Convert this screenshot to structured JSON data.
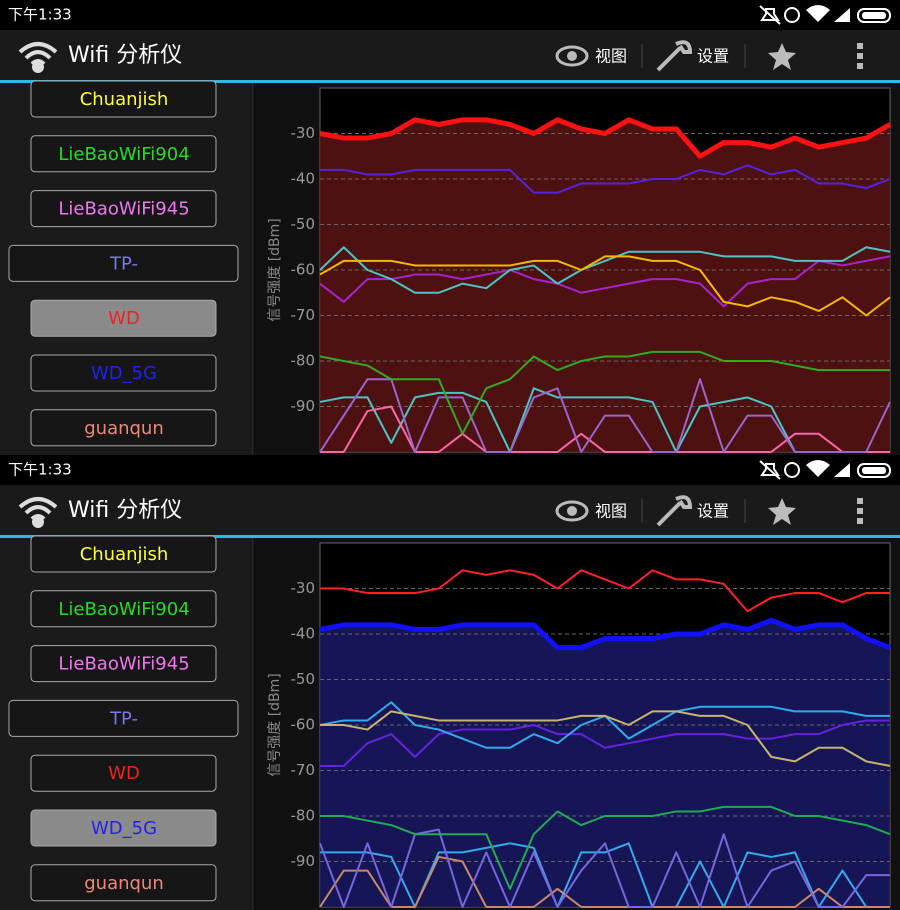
{
  "screens": [
    {
      "status_bar": {
        "time": "下午1:33"
      },
      "app_bar": {
        "title": "Wifi 分析仪",
        "view": "视图",
        "settings": "设置"
      },
      "selected": 4,
      "networks": [
        {
          "name": "Chuanjish",
          "color": "#ffff33"
        },
        {
          "name": "LieBaoWiFi904",
          "color": "#22dd22"
        },
        {
          "name": "LieBaoWiFi945",
          "color": "#ee77ee"
        },
        {
          "name": "TP-",
          "color": "#7777ee"
        },
        {
          "name": "WD",
          "color": "#ee2222"
        },
        {
          "name": "WD_5G",
          "color": "#2222ee"
        },
        {
          "name": "guanqun",
          "color": "#ee8877"
        }
      ],
      "chart_data": {
        "type": "line",
        "ylabel": "信号强度 [dBm]",
        "ylim": [
          -100,
          -20
        ],
        "yticks": [
          -30,
          -40,
          -50,
          -60,
          -70,
          -80,
          -90
        ],
        "grid": true,
        "series": [
          {
            "color": "#4cc4c4",
            "width": 2,
            "values": [
              -89,
              -88,
              -88,
              -98,
              -88,
              -87,
              -87,
              -89,
              -100,
              -86,
              -88,
              -88,
              -88,
              -88,
              -89,
              -100,
              -90,
              -89,
              -88,
              -90,
              -100,
              -100,
              -100,
              -100,
              -100
            ]
          },
          {
            "color": "#ff66aa",
            "width": 2,
            "values": [
              -100,
              -100,
              -91,
              -90,
              -100,
              -100,
              -96,
              -100,
              -100,
              -100,
              -100,
              -96,
              -100,
              -100,
              -100,
              -100,
              -100,
              -100,
              -100,
              -100,
              -96,
              -96,
              -100,
              -100,
              -100
            ]
          },
          {
            "color": "#9966cc",
            "width": 2,
            "values": [
              -100,
              -92,
              -84,
              -84,
              -100,
              -88,
              -88,
              -100,
              -100,
              -88,
              -86,
              -100,
              -92,
              -92,
              -100,
              -100,
              -84,
              -100,
              -92,
              -92,
              -100,
              -100,
              -100,
              -100,
              -89
            ]
          },
          {
            "color": "#33aa22",
            "width": 2,
            "values": [
              -79,
              -80,
              -81,
              -84,
              -84,
              -84,
              -96,
              -86,
              -84,
              -79,
              -82,
              -80,
              -79,
              -79,
              -78,
              -78,
              -78,
              -80,
              -80,
              -80,
              -81,
              -82,
              -82,
              -82,
              -82
            ]
          },
          {
            "color": "#aa22cc",
            "width": 2,
            "values": [
              -63,
              -67,
              -62,
              -62,
              -61,
              -61,
              -62,
              -61,
              -60,
              -62,
              -63,
              -65,
              -64,
              -63,
              -62,
              -62,
              -63,
              -68,
              -63,
              -62,
              -62,
              -58,
              -59,
              -58,
              -57
            ]
          },
          {
            "color": "#4cc4c4",
            "width": 2,
            "values": [
              -60,
              -55,
              -60,
              -62,
              -65,
              -65,
              -63,
              -64,
              -60,
              -59,
              -63,
              -60,
              -58,
              -56,
              -56,
              -56,
              -56,
              -57,
              -57,
              -57,
              -58,
              -58,
              -58,
              -55,
              -56
            ]
          },
          {
            "color": "#f5b800",
            "width": 2,
            "values": [
              -61,
              -58,
              -58,
              -58,
              -59,
              -59,
              -59,
              -59,
              -59,
              -58,
              -58,
              -60,
              -57,
              -57,
              -58,
              -58,
              -60,
              -67,
              -68,
              -66,
              -67,
              -69,
              -66,
              -70,
              -66
            ]
          },
          {
            "color": "#5522dd",
            "width": 2,
            "values": [
              -38,
              -38,
              -39,
              -39,
              -38,
              -38,
              -38,
              -38,
              -38,
              -43,
              -43,
              -41,
              -41,
              -41,
              -40,
              -40,
              -38,
              -39,
              -37,
              -39,
              -38,
              -41,
              -41,
              -42,
              -40
            ]
          },
          {
            "color": "#ff1111",
            "width": 5,
            "fill": "#5a1414",
            "values": [
              -30,
              -31,
              -31,
              -30,
              -27,
              -28,
              -27,
              -27,
              -28,
              -30,
              -27,
              -29,
              -30,
              -27,
              -29,
              -29,
              -35,
              -32,
              -32,
              -33,
              -31,
              -33,
              -32,
              -31,
              -28
            ]
          }
        ]
      }
    },
    {
      "status_bar": {
        "time": "下午1:33"
      },
      "app_bar": {
        "title": "Wifi 分析仪",
        "view": "视图",
        "settings": "设置"
      },
      "selected": 5,
      "networks": [
        {
          "name": "Chuanjish",
          "color": "#ffff33"
        },
        {
          "name": "LieBaoWiFi904",
          "color": "#22dd22"
        },
        {
          "name": "LieBaoWiFi945",
          "color": "#ee77ee"
        },
        {
          "name": "TP-",
          "color": "#7777ee"
        },
        {
          "name": "WD",
          "color": "#ee2222"
        },
        {
          "name": "WD_5G",
          "color": "#2222ee"
        },
        {
          "name": "guanqun",
          "color": "#ee8877"
        }
      ],
      "chart_data": {
        "type": "line",
        "ylabel": "信号强度 [dBm]",
        "ylim": [
          -100,
          -20
        ],
        "yticks": [
          -30,
          -40,
          -50,
          -60,
          -70,
          -80,
          -90
        ],
        "grid": true,
        "series": [
          {
            "color": "#33aaee",
            "width": 2,
            "values": [
              -88,
              -88,
              -88,
              -89,
              -100,
              -88,
              -88,
              -87,
              -86,
              -87,
              -100,
              -88,
              -88,
              -86,
              -100,
              -100,
              -90,
              -100,
              -88,
              -89,
              -88,
              -100,
              -92,
              -100,
              -100
            ]
          },
          {
            "color": "#cc8866",
            "width": 2,
            "values": [
              -100,
              -92,
              -92,
              -100,
              -100,
              -89,
              -90,
              -100,
              -100,
              -100,
              -96,
              -100,
              -100,
              -100,
              -100,
              -100,
              -100,
              -100,
              -100,
              -100,
              -100,
              -96,
              -100,
              -100,
              -100
            ]
          },
          {
            "color": "#7766dd",
            "width": 2,
            "values": [
              -86,
              -100,
              -86,
              -100,
              -84,
              -83,
              -100,
              -88,
              -100,
              -88,
              -100,
              -92,
              -86,
              -100,
              -100,
              -88,
              -100,
              -84,
              -100,
              -92,
              -90,
              -100,
              -100,
              -93,
              -93
            ]
          },
          {
            "color": "#22aa55",
            "width": 2,
            "values": [
              -80,
              -80,
              -81,
              -82,
              -84,
              -84,
              -84,
              -84,
              -96,
              -84,
              -79,
              -82,
              -80,
              -80,
              -80,
              -79,
              -79,
              -78,
              -78,
              -78,
              -80,
              -80,
              -81,
              -82,
              -84
            ]
          },
          {
            "color": "#6622dd",
            "width": 2,
            "values": [
              -69,
              -69,
              -64,
              -62,
              -67,
              -62,
              -61,
              -61,
              -61,
              -60,
              -62,
              -62,
              -65,
              -64,
              -63,
              -62,
              -62,
              -62,
              -63,
              -63,
              -62,
              -62,
              -60,
              -59,
              -59
            ]
          },
          {
            "color": "#33aaee",
            "width": 2,
            "values": [
              -60,
              -59,
              -59,
              -55,
              -60,
              -61,
              -63,
              -65,
              -65,
              -62,
              -64,
              -60,
              -58,
              -63,
              -60,
              -57,
              -56,
              -56,
              -56,
              -56,
              -57,
              -57,
              -57,
              -58,
              -58
            ]
          },
          {
            "color": "#c8b46e",
            "width": 2,
            "values": [
              -60,
              -60,
              -61,
              -57,
              -58,
              -59,
              -59,
              -59,
              -59,
              -59,
              -59,
              -58,
              -58,
              -60,
              -57,
              -57,
              -58,
              -58,
              -60,
              -67,
              -68,
              -65,
              -65,
              -68,
              -69
            ]
          },
          {
            "color": "#ff2222",
            "width": 2,
            "values": [
              -30,
              -30,
              -31,
              -31,
              -31,
              -30,
              -26,
              -27,
              -26,
              -27,
              -30,
              -26,
              -28,
              -30,
              -26,
              -28,
              -28,
              -29,
              -35,
              -32,
              -31,
              -31,
              -33,
              -31,
              -31
            ]
          },
          {
            "color": "#1111ff",
            "width": 5,
            "fill": "#1a1a66",
            "values": [
              -39,
              -38,
              -38,
              -38,
              -39,
              -39,
              -38,
              -38,
              -38,
              -38,
              -43,
              -43,
              -41,
              -41,
              -41,
              -40,
              -40,
              -38,
              -39,
              -37,
              -39,
              -38,
              -38,
              -41,
              -43
            ]
          }
        ]
      }
    }
  ]
}
